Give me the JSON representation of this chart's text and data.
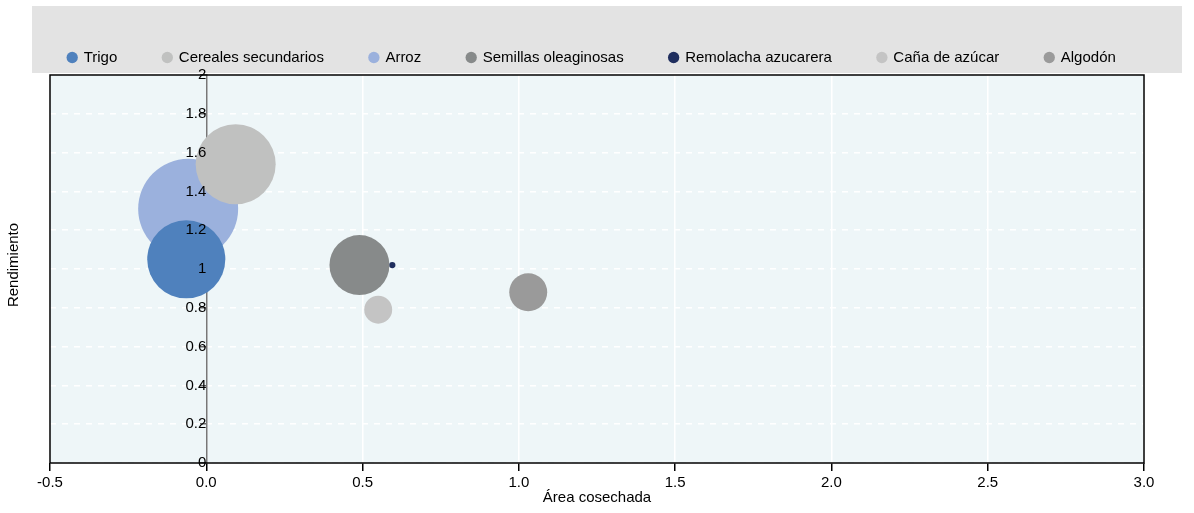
{
  "chart_data": {
    "type": "bubble",
    "xlabel": "Área cosechada",
    "ylabel": "Rendimiento",
    "series": [
      {
        "name": "Trigo",
        "color": "#4f81bd",
        "x": [
          -0.064
        ],
        "values": [
          1.05
        ],
        "sizes": [
          0.61
        ]
      },
      {
        "name": "Cereales secundarios",
        "color": "#c0c1c0",
        "x": [
          0.094
        ],
        "values": [
          1.54
        ],
        "sizes": [
          0.64
        ]
      },
      {
        "name": "Arroz",
        "color": "#9bb1dd",
        "x": [
          -0.058
        ],
        "values": [
          1.31
        ],
        "sizes": [
          1
        ]
      },
      {
        "name": "Semillas oleaginosas",
        "color": "#878a8a",
        "x": [
          0.49
        ],
        "values": [
          1.02
        ],
        "sizes": [
          0.36
        ]
      },
      {
        "name": "Remolacha azucarera",
        "color": "#1f2e5e",
        "x": [
          0.595
        ],
        "values": [
          1.02
        ],
        "sizes": [
          0.004
        ]
      },
      {
        "name": "Caña de azúcar",
        "color": "#c4c4c4",
        "x": [
          0.55
        ],
        "values": [
          0.79
        ],
        "sizes": [
          0.078
        ]
      },
      {
        "name": "Algodón",
        "color": "#9a9a9a",
        "x": [
          1.03
        ],
        "values": [
          0.88
        ],
        "sizes": [
          0.144
        ]
      }
    ],
    "xlim": [
      -0.5,
      3.0
    ],
    "xticks": [
      -0.5,
      {
        "value": 0,
        "label": "0.0"
      },
      0.5,
      {
        "value": 1,
        "label": "1.0"
      },
      1.5,
      {
        "value": 2,
        "label": "2.0"
      },
      2.5,
      {
        "value": 3,
        "label": "3.0"
      }
    ],
    "ylim": [
      0,
      2
    ],
    "yticks": [
      0,
      0.2,
      0.4,
      0.6,
      0.8,
      1,
      1.2,
      1.4,
      1.6,
      1.8,
      2
    ],
    "grid": true,
    "legend": "top"
  }
}
